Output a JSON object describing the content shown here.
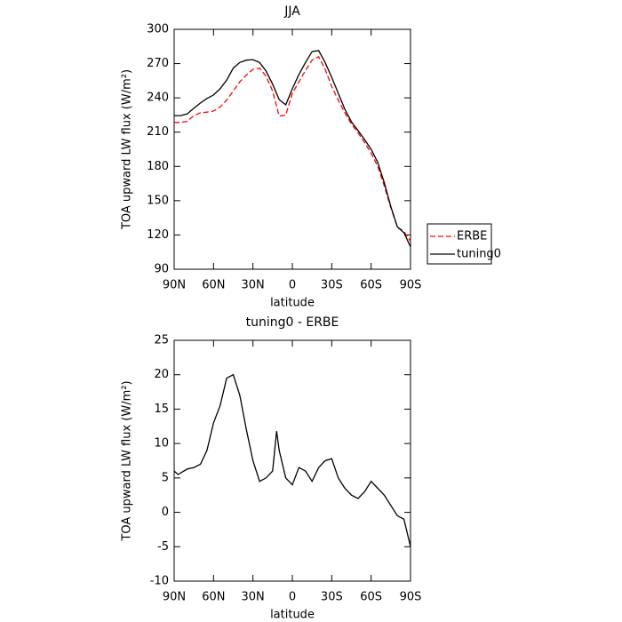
{
  "chart_data": [
    {
      "type": "line",
      "title": "JJA",
      "xlabel": "latitude",
      "ylabel": "TOA upward LW flux (W/m²)",
      "x": [
        90,
        85,
        80,
        75,
        70,
        65,
        60,
        55,
        50,
        45,
        40,
        35,
        30,
        25,
        20,
        15,
        10,
        5,
        0,
        -5,
        -10,
        -15,
        -20,
        -25,
        -30,
        -35,
        -40,
        -45,
        -50,
        -55,
        -60,
        -65,
        -70,
        -75,
        -80,
        -85,
        -90
      ],
      "series": [
        {
          "name": "ERBE",
          "color": "#ff0000",
          "dashed": true,
          "values": [
            218.5,
            218.5,
            219.5,
            224.5,
            227,
            227.5,
            228.5,
            232,
            238,
            246,
            254,
            260,
            265,
            266,
            259,
            246,
            224,
            225,
            244,
            254,
            264,
            273,
            276,
            265,
            250,
            238,
            227,
            217,
            209.5,
            201,
            191.5,
            180,
            163,
            144,
            127,
            123,
            114.5
          ]
        },
        {
          "name": "tuning0",
          "color": "#000000",
          "dashed": false,
          "values": [
            224.5,
            224.5,
            226,
            231,
            235.5,
            239.5,
            242.5,
            248,
            255.5,
            266,
            271,
            273,
            273.5,
            271,
            263.5,
            252,
            238.5,
            234,
            248,
            260.5,
            271,
            280.5,
            281.5,
            271,
            258,
            244,
            230,
            219,
            211.5,
            203.5,
            195,
            183.5,
            166,
            145,
            127,
            122,
            109.5
          ]
        }
      ],
      "xlim": [
        90,
        -90
      ],
      "xticks": [
        {
          "value": 90,
          "label": "90N"
        },
        {
          "value": 60,
          "label": "60N"
        },
        {
          "value": 30,
          "label": "30N"
        },
        0,
        {
          "value": -30,
          "label": "30S"
        },
        {
          "value": -60,
          "label": "60S"
        },
        {
          "value": -90,
          "label": "90S"
        }
      ],
      "ylim": [
        90,
        300
      ],
      "yticks": [
        90,
        120,
        150,
        180,
        210,
        240,
        270,
        300
      ],
      "legend": "right"
    },
    {
      "type": "line",
      "title": "tuning0 - ERBE",
      "xlabel": "latitude",
      "ylabel": "TOA upward LW flux (W/m²)",
      "x": [
        90,
        87,
        80,
        75,
        70,
        65,
        60,
        55,
        50,
        45,
        40,
        35,
        30,
        25,
        20,
        15,
        12,
        10,
        5,
        0,
        -5,
        -10,
        -15,
        -20,
        -25,
        -30,
        -35,
        -40,
        -45,
        -50,
        -55,
        -60,
        -65,
        -70,
        -75,
        -80,
        -85,
        -90
      ],
      "series": [
        {
          "name": "tuning0 - ERBE",
          "color": "#000000",
          "dashed": false,
          "values": [
            6,
            5.5,
            6.3,
            6.5,
            7,
            9,
            13,
            15.5,
            19.5,
            20,
            17,
            12,
            7.5,
            4.5,
            5,
            6,
            11.8,
            9,
            5,
            4,
            6.5,
            6,
            4.5,
            6.5,
            7.5,
            7.8,
            5,
            3.5,
            2.5,
            2,
            3,
            4.5,
            3.5,
            2.5,
            1,
            -0.5,
            -1,
            -5
          ]
        }
      ],
      "xlim": [
        90,
        -90
      ],
      "xticks": [
        {
          "value": 90,
          "label": "90N"
        },
        {
          "value": 60,
          "label": "60N"
        },
        {
          "value": 30,
          "label": "30N"
        },
        0,
        {
          "value": -30,
          "label": "30S"
        },
        {
          "value": -60,
          "label": "60S"
        },
        {
          "value": -90,
          "label": "90S"
        }
      ],
      "ylim": [
        -10,
        25
      ],
      "yticks": [
        -10,
        -5,
        0,
        5,
        10,
        15,
        20,
        25
      ]
    }
  ]
}
